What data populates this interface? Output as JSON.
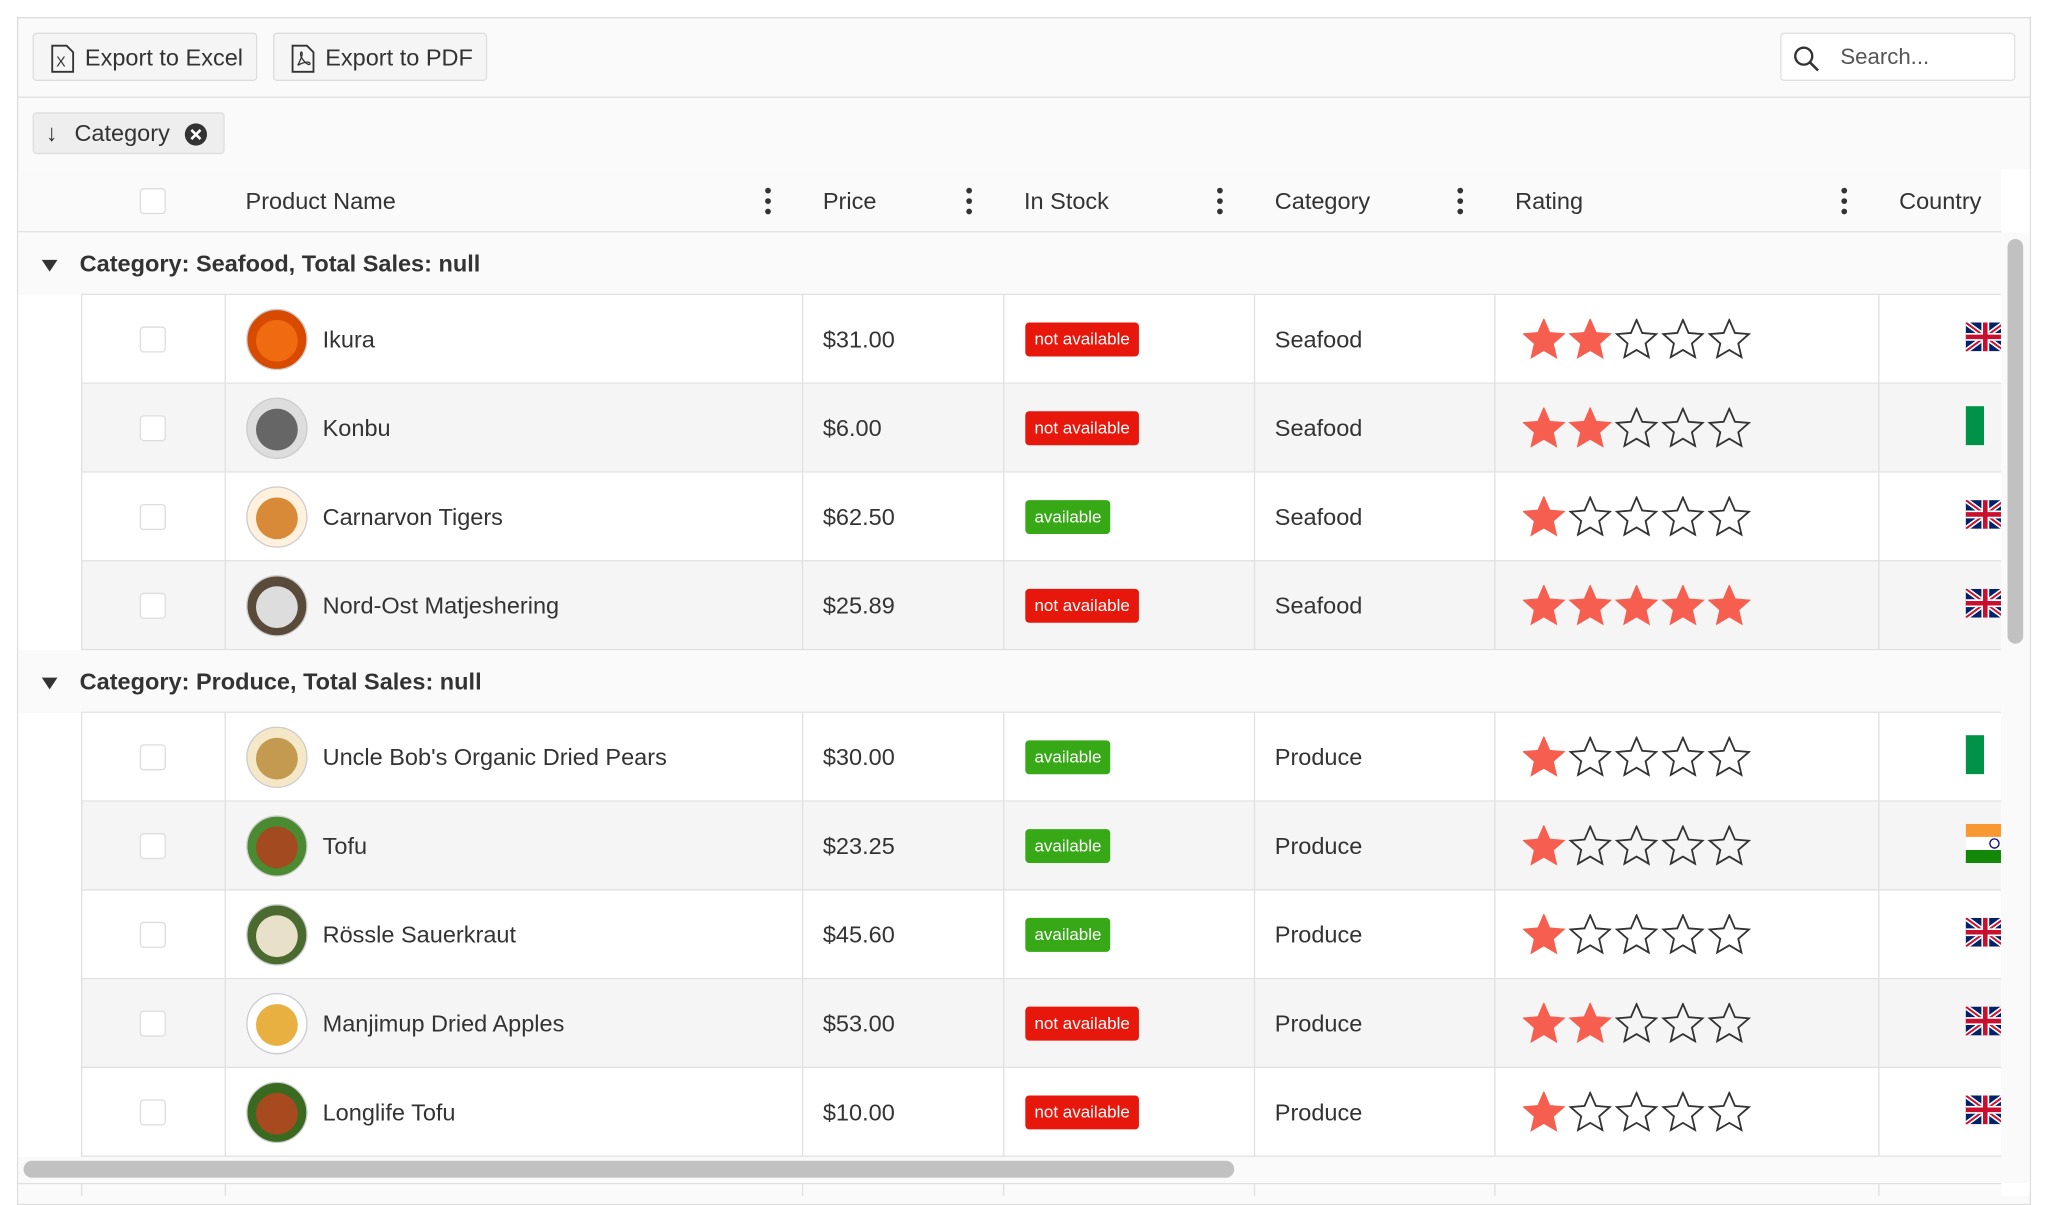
{
  "toolbar": {
    "export_excel": "Export to Excel",
    "export_pdf": "Export to PDF",
    "search_placeholder": "Search..."
  },
  "group_panel": {
    "chip": "Category"
  },
  "columns": [
    "Product Name",
    "Price",
    "In Stock",
    "Category",
    "Rating",
    "Country"
  ],
  "groups": [
    {
      "label": "Category: Seafood, Total Sales: null",
      "rows": [
        {
          "product": "Ikura",
          "price": "$31.00",
          "in_stock": "not available",
          "badge_color": "#e8170b",
          "category": "Seafood",
          "rating": 2
        },
        {
          "product": "Konbu",
          "price": "$6.00",
          "in_stock": "not available",
          "badge_color": "#e8170b",
          "category": "Seafood",
          "rating": 2
        },
        {
          "product": "Carnarvon Tigers",
          "price": "$62.50",
          "in_stock": "available",
          "badge_color": "#37a816",
          "category": "Seafood",
          "rating": 1
        },
        {
          "product": "Nord-Ost Matjeshering",
          "price": "$25.89",
          "in_stock": "not available",
          "badge_color": "#e8170b",
          "category": "Seafood",
          "rating": 5
        }
      ]
    },
    {
      "label": "Category: Produce, Total Sales: null",
      "rows": [
        {
          "product": "Uncle Bob's Organic Dried Pears",
          "price": "$30.00",
          "in_stock": "available",
          "badge_color": "#37a816",
          "category": "Produce",
          "rating": 1
        },
        {
          "product": "Tofu",
          "price": "$23.25",
          "in_stock": "available",
          "badge_color": "#37a816",
          "category": "Produce",
          "rating": 1
        },
        {
          "product": "Rössle Sauerkraut",
          "price": "$45.60",
          "in_stock": "available",
          "badge_color": "#37a816",
          "category": "Produce",
          "rating": 1
        },
        {
          "product": "Manjimup Dried Apples",
          "price": "$53.00",
          "in_stock": "not available",
          "badge_color": "#e8170b",
          "category": "Produce",
          "rating": 2
        },
        {
          "product": "Longlife Tofu",
          "price": "$10.00",
          "in_stock": "not available",
          "badge_color": "#e8170b",
          "category": "Produce",
          "rating": 1
        }
      ]
    }
  ]
}
